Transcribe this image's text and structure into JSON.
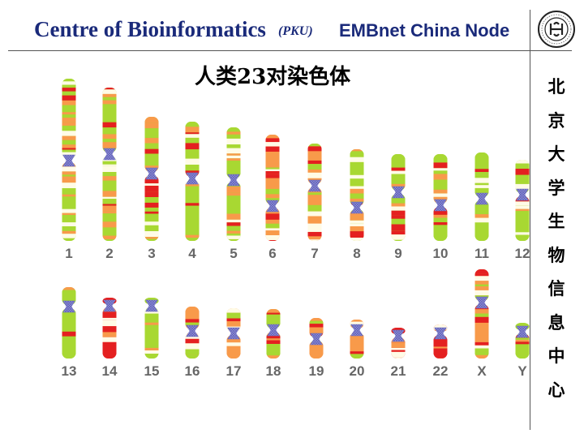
{
  "header": {
    "title_main": "Centre of Bioinformatics",
    "title_paren": "(PKU)",
    "title_node": "EMBnet China Node"
  },
  "title": "人类23对染色体",
  "vertical_text": [
    "北",
    "京",
    "大",
    "学",
    "生",
    "物",
    "信",
    "息",
    "中",
    "心"
  ],
  "logo": {
    "name": "peking-university-seal",
    "text": "PEKING UNIVERSITY 1898"
  },
  "colors": {
    "header_blue": "#1a2a7a",
    "band_green": "#a8d832",
    "band_orange": "#f89a4a",
    "band_red": "#e42020",
    "band_white": "#fffbe6",
    "centromere": "#8f8fd8"
  },
  "chromosomes": [
    {
      "label": "1",
      "style": "mixed"
    },
    {
      "label": "2",
      "style": "green"
    },
    {
      "label": "3",
      "style": "green"
    },
    {
      "label": "4",
      "style": "green"
    },
    {
      "label": "5",
      "style": "green"
    },
    {
      "label": "6",
      "style": "orange"
    },
    {
      "label": "7",
      "style": "orange"
    },
    {
      "label": "8",
      "style": "green"
    },
    {
      "label": "9",
      "style": "green"
    },
    {
      "label": "10",
      "style": "green"
    },
    {
      "label": "11",
      "style": "green"
    },
    {
      "label": "12",
      "style": "green"
    },
    {
      "label": "13",
      "style": "green"
    },
    {
      "label": "14",
      "style": "red"
    },
    {
      "label": "15",
      "style": "green"
    },
    {
      "label": "16",
      "style": "orange"
    },
    {
      "label": "17",
      "style": "orange"
    },
    {
      "label": "18",
      "style": "green"
    },
    {
      "label": "19",
      "style": "orange"
    },
    {
      "label": "20",
      "style": "orange"
    },
    {
      "label": "21",
      "style": "red"
    },
    {
      "label": "22",
      "style": "red"
    },
    {
      "label": "X",
      "style": "orange"
    },
    {
      "label": "Y",
      "style": "green"
    }
  ]
}
